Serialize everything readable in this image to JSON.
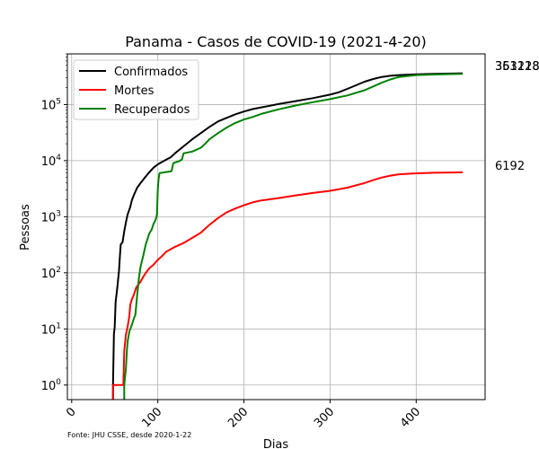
{
  "chart_data": {
    "type": "line",
    "title": "Panama - Casos de COVID-19 (2021-4-20)",
    "xlabel": "Dias",
    "ylabel": "Pessoas",
    "yscale": "log",
    "xlim": [
      -5,
      480
    ],
    "ylim": [
      0.55,
      800000
    ],
    "x_ticks": [
      0,
      100,
      200,
      300,
      400
    ],
    "y_ticks": [
      1,
      10,
      100,
      1000,
      10000,
      100000
    ],
    "y_tick_labels": [
      {
        "base": "10",
        "exp": "0"
      },
      {
        "base": "10",
        "exp": "1"
      },
      {
        "base": "10",
        "exp": "2"
      },
      {
        "base": "10",
        "exp": "3"
      },
      {
        "base": "10",
        "exp": "4"
      },
      {
        "base": "10",
        "exp": "5"
      }
    ],
    "grid": true,
    "legend_position": "top-left",
    "source_note": "Fonte: JHU CSSE, desde 2020-1-22",
    "end_labels": [
      "361218",
      "353128",
      "6192"
    ],
    "series": [
      {
        "name": "Confirmados",
        "color": "#000000",
        "points": [
          [
            48,
            0.5
          ],
          [
            48,
            1
          ],
          [
            49,
            8
          ],
          [
            50,
            11
          ],
          [
            51,
            30
          ],
          [
            53,
            55
          ],
          [
            55,
            110
          ],
          [
            56,
            200
          ],
          [
            57,
            320
          ],
          [
            59,
            350
          ],
          [
            61,
            550
          ],
          [
            63,
            800
          ],
          [
            65,
            1100
          ],
          [
            68,
            1500
          ],
          [
            70,
            2000
          ],
          [
            73,
            2600
          ],
          [
            76,
            3300
          ],
          [
            80,
            4000
          ],
          [
            85,
            5000
          ],
          [
            90,
            6200
          ],
          [
            95,
            7500
          ],
          [
            100,
            8600
          ],
          [
            105,
            9500
          ],
          [
            110,
            10500
          ],
          [
            115,
            11500
          ],
          [
            120,
            13500
          ],
          [
            130,
            18000
          ],
          [
            140,
            24000
          ],
          [
            150,
            31000
          ],
          [
            160,
            40000
          ],
          [
            170,
            50000
          ],
          [
            180,
            58000
          ],
          [
            190,
            67000
          ],
          [
            200,
            75000
          ],
          [
            210,
            83000
          ],
          [
            220,
            89000
          ],
          [
            230,
            95000
          ],
          [
            240,
            102000
          ],
          [
            260,
            115000
          ],
          [
            280,
            130000
          ],
          [
            300,
            150000
          ],
          [
            310,
            165000
          ],
          [
            320,
            190000
          ],
          [
            330,
            220000
          ],
          [
            340,
            255000
          ],
          [
            350,
            285000
          ],
          [
            360,
            310000
          ],
          [
            370,
            325000
          ],
          [
            380,
            335000
          ],
          [
            400,
            345000
          ],
          [
            420,
            352000
          ],
          [
            440,
            357000
          ],
          [
            454,
            361218
          ]
        ]
      },
      {
        "name": "Mortes",
        "color": "#ff0000",
        "points": [
          [
            48,
            0.5
          ],
          [
            48,
            1
          ],
          [
            50,
            1
          ],
          [
            60,
            1
          ],
          [
            61,
            4
          ],
          [
            63,
            8
          ],
          [
            65,
            11
          ],
          [
            67,
            17
          ],
          [
            68,
            27
          ],
          [
            70,
            34
          ],
          [
            72,
            40
          ],
          [
            75,
            55
          ],
          [
            80,
            70
          ],
          [
            85,
            95
          ],
          [
            90,
            120
          ],
          [
            95,
            140
          ],
          [
            100,
            170
          ],
          [
            105,
            200
          ],
          [
            110,
            240
          ],
          [
            120,
            290
          ],
          [
            130,
            340
          ],
          [
            140,
            420
          ],
          [
            150,
            520
          ],
          [
            160,
            720
          ],
          [
            170,
            950
          ],
          [
            180,
            1200
          ],
          [
            190,
            1400
          ],
          [
            200,
            1600
          ],
          [
            210,
            1800
          ],
          [
            220,
            1950
          ],
          [
            240,
            2150
          ],
          [
            260,
            2400
          ],
          [
            280,
            2650
          ],
          [
            300,
            2900
          ],
          [
            320,
            3300
          ],
          [
            340,
            4000
          ],
          [
            350,
            4500
          ],
          [
            360,
            5000
          ],
          [
            370,
            5400
          ],
          [
            380,
            5700
          ],
          [
            400,
            5950
          ],
          [
            420,
            6080
          ],
          [
            440,
            6150
          ],
          [
            454,
            6192
          ]
        ]
      },
      {
        "name": "Recuperados",
        "color": "#008000",
        "points": [
          [
            61,
            0.5
          ],
          [
            61,
            1
          ],
          [
            63,
            2
          ],
          [
            64,
            4
          ],
          [
            65,
            6
          ],
          [
            67,
            9
          ],
          [
            70,
            12
          ],
          [
            72,
            15
          ],
          [
            74,
            18
          ],
          [
            76,
            40
          ],
          [
            78,
            80
          ],
          [
            80,
            130
          ],
          [
            83,
            200
          ],
          [
            86,
            320
          ],
          [
            88,
            400
          ],
          [
            90,
            500
          ],
          [
            93,
            600
          ],
          [
            95,
            750
          ],
          [
            97,
            850
          ],
          [
            98,
            950
          ],
          [
            99,
            1100
          ],
          [
            100,
            3200
          ],
          [
            101,
            4800
          ],
          [
            102,
            6000
          ],
          [
            108,
            6200
          ],
          [
            116,
            6500
          ],
          [
            118,
            9000
          ],
          [
            122,
            9500
          ],
          [
            125,
            9800
          ],
          [
            128,
            10500
          ],
          [
            130,
            13500
          ],
          [
            140,
            14500
          ],
          [
            150,
            17000
          ],
          [
            155,
            20000
          ],
          [
            160,
            24000
          ],
          [
            170,
            31000
          ],
          [
            180,
            39000
          ],
          [
            190,
            47000
          ],
          [
            200,
            54000
          ],
          [
            210,
            60000
          ],
          [
            220,
            68000
          ],
          [
            240,
            82000
          ],
          [
            260,
            96000
          ],
          [
            280,
            110000
          ],
          [
            300,
            125000
          ],
          [
            320,
            145000
          ],
          [
            340,
            180000
          ],
          [
            350,
            210000
          ],
          [
            360,
            245000
          ],
          [
            370,
            280000
          ],
          [
            380,
            310000
          ],
          [
            400,
            335000
          ],
          [
            420,
            343000
          ],
          [
            440,
            349000
          ],
          [
            454,
            353128
          ]
        ]
      }
    ]
  }
}
